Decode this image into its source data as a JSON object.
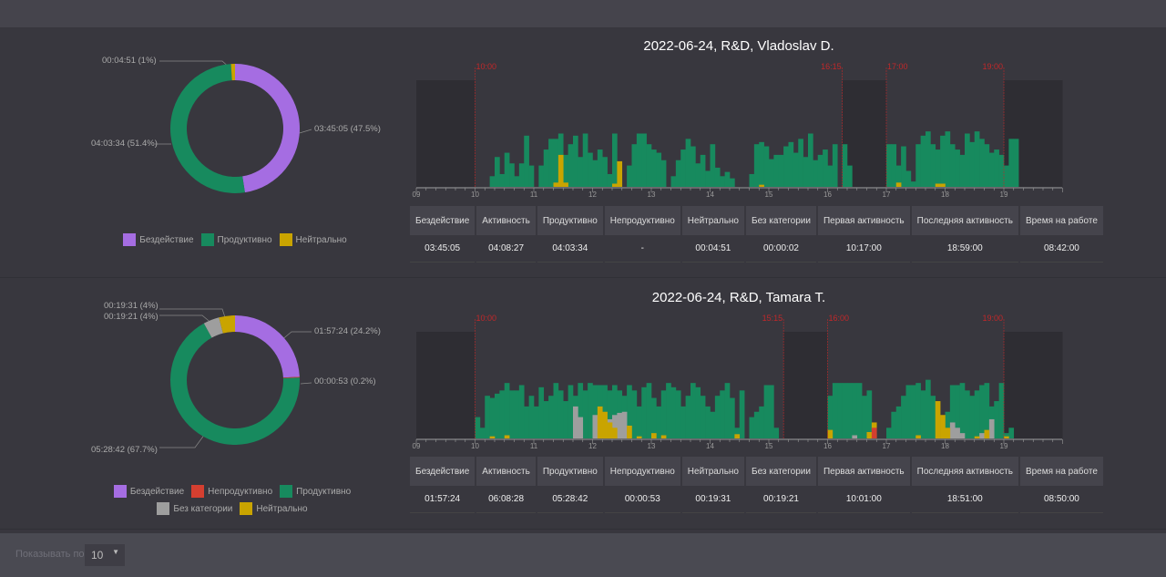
{
  "pagination": {
    "label": "Показывать по",
    "value": "10"
  },
  "colors": {
    "idle": "#a56de2",
    "unproductive": "#d43f30",
    "productive": "#178a5e",
    "uncategorized": "#9e9e9e",
    "neutral": "#c9a400",
    "marker": "#c0282a",
    "shade": "#2e2d33"
  },
  "legend_labels": {
    "idle": "Бездействие",
    "unproductive": "Непродуктивно",
    "productive": "Продуктивно",
    "uncategorized": "Без категории",
    "neutral": "Нейтрально"
  },
  "table_headers": [
    "Бездействие",
    "Активность",
    "Продуктивно",
    "Непродуктивно",
    "Нейтрально",
    "Без категории",
    "Первая активность",
    "Последняя активность",
    "Время на работе"
  ],
  "chart_data": [
    {
      "type": "pie",
      "title": "2022-06-24, R&D, Vladoslav D.",
      "slices": [
        {
          "key": "idle",
          "value": 47.5,
          "label": "03:45:05 (47.5%)"
        },
        {
          "key": "productive",
          "value": 51.4,
          "label": "04:03:34 (51.4%)"
        },
        {
          "key": "neutral",
          "value": 1,
          "label": "00:04:51 (1%)"
        }
      ],
      "legend": [
        "idle",
        "productive",
        "neutral"
      ],
      "timeline": {
        "type": "bar",
        "x_range": [
          9,
          20
        ],
        "x_ticks": [
          "09",
          "10",
          "11",
          "12",
          "13",
          "14",
          "15",
          "16",
          "17",
          "18",
          "19"
        ],
        "bin_minutes": 5,
        "start": "10:00",
        "markers": [
          {
            "time": 10,
            "label": "10:00"
          },
          {
            "time": 16.25,
            "label": "16:15"
          },
          {
            "time": 17,
            "label": "17:00"
          },
          {
            "time": 19,
            "label": "19:00"
          }
        ],
        "shaded": [
          [
            9,
            10
          ],
          [
            16.25,
            17
          ],
          [
            19,
            20
          ]
        ],
        "productive": [
          0,
          0,
          0,
          10,
          28,
          12,
          32,
          22,
          10,
          22,
          48,
          20,
          0,
          20,
          35,
          45,
          45,
          50,
          30,
          40,
          48,
          28,
          50,
          32,
          25,
          35,
          28,
          12,
          50,
          8,
          0,
          20,
          40,
          50,
          50,
          40,
          35,
          32,
          25,
          0,
          10,
          25,
          35,
          45,
          38,
          22,
          30,
          15,
          40,
          18,
          10,
          14,
          8,
          0,
          0,
          0,
          12,
          40,
          42,
          38,
          26,
          30,
          30,
          38,
          42,
          32,
          45,
          28,
          50,
          25,
          30,
          35,
          20,
          40,
          0,
          40,
          20,
          0,
          0,
          0,
          0,
          0,
          0,
          0,
          40,
          40,
          20,
          38,
          15,
          5,
          40,
          48,
          52,
          40,
          35,
          48,
          52,
          40,
          35,
          30,
          50,
          42,
          52,
          45,
          40,
          32,
          35,
          30,
          20,
          45,
          45,
          0,
          0,
          0
        ],
        "neutral": {
          "16": 4,
          "17": 30,
          "18": 4,
          "28": 3,
          "29": 24,
          "58": 2,
          "86": 4,
          "94": 3,
          "95": 3
        }
      },
      "stats": [
        "03:45:05",
        "04:08:27",
        "04:03:34",
        "-",
        "00:04:51",
        "00:00:02",
        "10:17:00",
        "18:59:00",
        "08:42:00"
      ]
    },
    {
      "type": "pie",
      "title": "2022-06-24, R&D, Tamara T.",
      "slices": [
        {
          "key": "idle",
          "value": 24.2,
          "label": "01:57:24 (24.2%)"
        },
        {
          "key": "unproductive",
          "value": 0.2,
          "label": "00:00:53 (0.2%)"
        },
        {
          "key": "productive",
          "value": 67.7,
          "label": "05:28:42 (67.7%)"
        },
        {
          "key": "uncategorized",
          "value": 4,
          "label": "00:19:21 (4%)"
        },
        {
          "key": "neutral",
          "value": 4,
          "label": "00:19:31 (4%)"
        }
      ],
      "legend": [
        "idle",
        "unproductive",
        "productive",
        "uncategorized",
        "neutral"
      ],
      "timeline": {
        "type": "bar",
        "x_range": [
          9,
          20
        ],
        "x_ticks": [
          "09",
          "10",
          "11",
          "12",
          "13",
          "14",
          "15",
          "16",
          "17",
          "18",
          "19"
        ],
        "bin_minutes": 5,
        "start": "10:00",
        "markers": [
          {
            "time": 10,
            "label": "10:00"
          },
          {
            "time": 15.25,
            "label": "15:15"
          },
          {
            "time": 16,
            "label": "16:00"
          },
          {
            "time": 19,
            "label": "19:00"
          }
        ],
        "shaded": [
          [
            9,
            10
          ],
          [
            15.25,
            16
          ],
          [
            19,
            20
          ]
        ],
        "productive": [
          20,
          10,
          40,
          38,
          42,
          45,
          52,
          45,
          45,
          50,
          30,
          40,
          30,
          48,
          35,
          40,
          52,
          45,
          35,
          50,
          40,
          52,
          45,
          52,
          50,
          50,
          50,
          45,
          50,
          45,
          40,
          50,
          45,
          30,
          48,
          52,
          38,
          30,
          45,
          52,
          48,
          45,
          30,
          40,
          52,
          48,
          40,
          30,
          25,
          40,
          45,
          52,
          38,
          10,
          45,
          0,
          20,
          25,
          30,
          50,
          50,
          10,
          0,
          0,
          0,
          0,
          0,
          0,
          0,
          0,
          0,
          0,
          40,
          52,
          52,
          52,
          52,
          52,
          52,
          40,
          45,
          5,
          0,
          0,
          10,
          25,
          30,
          40,
          50,
          50,
          52,
          45,
          55,
          40,
          0,
          0,
          25,
          50,
          50,
          52,
          45,
          40,
          45,
          50,
          52,
          30,
          35,
          52,
          5,
          10,
          0,
          0,
          0,
          0
        ],
        "uncategorized": {
          "20": 30,
          "21": 20,
          "24": 22,
          "25": 18,
          "26": 12,
          "27": 18,
          "28": 22,
          "29": 24,
          "30": 25,
          "77": 3,
          "97": 15,
          "98": 10,
          "99": 5,
          "103": 5,
          "104": 3,
          "105": 18
        },
        "neutral": {
          "3": 2,
          "6": 3,
          "25": 30,
          "26": 25,
          "27": 15,
          "28": 10,
          "31": 12,
          "33": 2,
          "36": 5,
          "38": 3,
          "53": 4,
          "72": 8,
          "80": 6,
          "81": 15,
          "90": 3,
          "94": 35,
          "95": 22,
          "96": 10,
          "102": 2,
          "104": 8,
          "108": 2
        },
        "unproductive": {
          "81": 10
        }
      },
      "stats": [
        "01:57:24",
        "06:08:28",
        "05:28:42",
        "00:00:53",
        "00:19:31",
        "00:19:21",
        "10:01:00",
        "18:51:00",
        "08:50:00"
      ]
    }
  ]
}
